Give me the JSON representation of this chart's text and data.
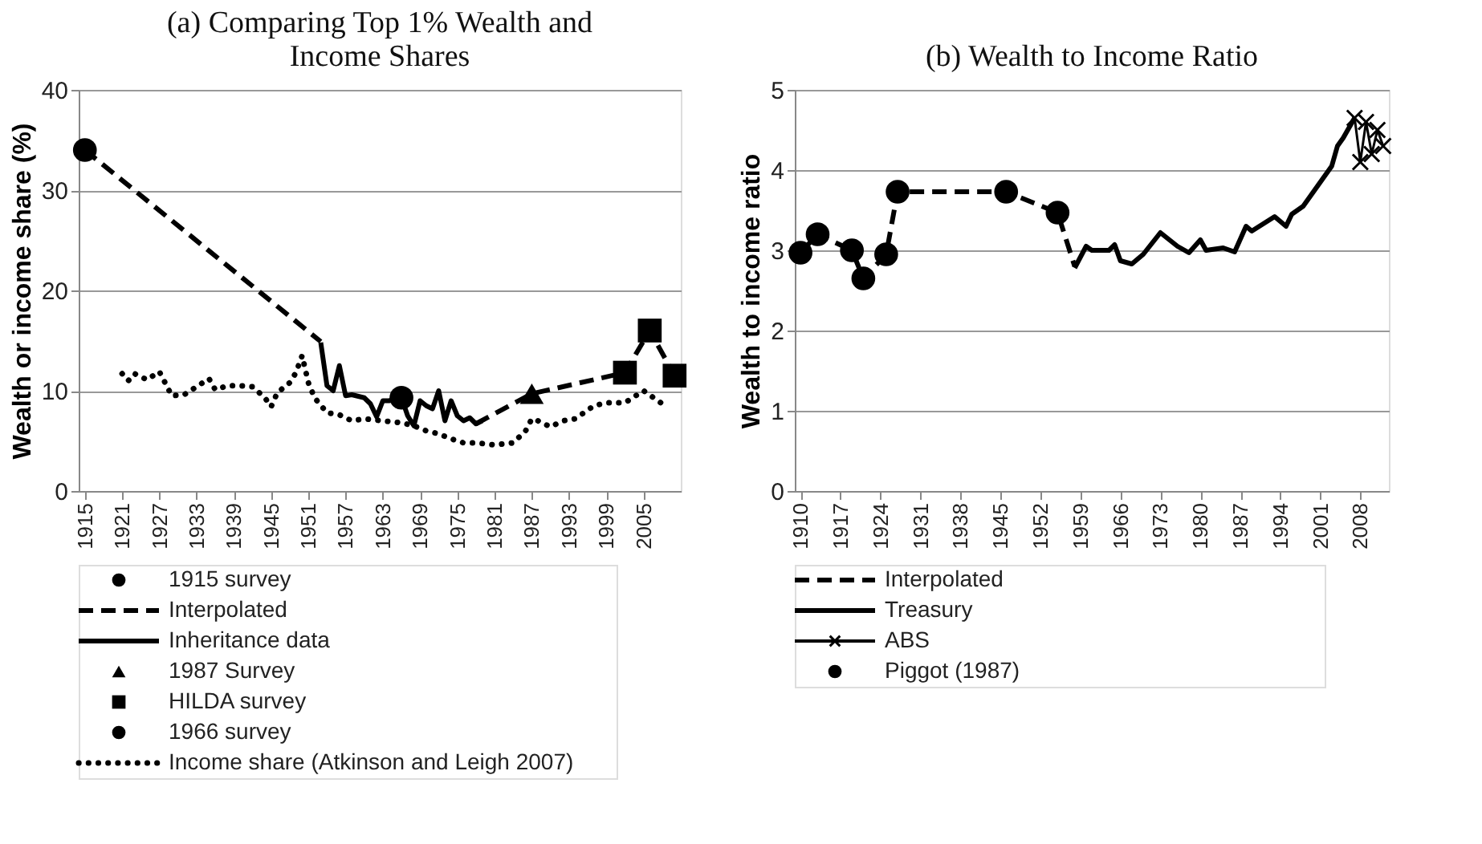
{
  "chart_data": [
    {
      "type": "line",
      "title": "(a) Comparing Top 1% Wealth and Income Shares",
      "ylabel": "Wealth or income share (%)",
      "xlim": [
        1914,
        2011
      ],
      "xticks": [
        1915,
        1921,
        1927,
        1933,
        1939,
        1945,
        1951,
        1957,
        1963,
        1969,
        1975,
        1981,
        1987,
        1993,
        1999,
        2005
      ],
      "ylim": [
        0,
        40
      ],
      "yticks": [
        0,
        10,
        20,
        30,
        40
      ],
      "grid": "y",
      "legend": "bottom",
      "series": [
        {
          "name": "1915 survey",
          "type": "scatter",
          "marker": "circle",
          "color": "#000000",
          "x": [
            1915
          ],
          "values": [
            34
          ]
        },
        {
          "name": "Interpolated",
          "type": "line",
          "line_style": "dashed",
          "color": "#000000",
          "x": [
            1915,
            1953,
            1965,
            1978,
            1987,
            2002,
            2006,
            2010
          ],
          "values": [
            34,
            14.9,
            null,
            6.7,
            9.7,
            11.8,
            16,
            11.5
          ]
        },
        {
          "name": "Inheritance data",
          "type": "line",
          "line_style": "solid",
          "color": "#000000",
          "x": [
            1953,
            1954,
            1955,
            1956,
            1957,
            1958,
            1960,
            1961,
            1962,
            1963,
            1964,
            1966,
            1967,
            1968,
            1969,
            1970,
            1971,
            1972,
            1973,
            1974,
            1975,
            1976,
            1977,
            1978,
            1979
          ],
          "values": [
            14.8,
            10.5,
            10,
            12.5,
            9.5,
            9.6,
            9.3,
            8.7,
            7.4,
            9,
            9,
            9.3,
            7.5,
            6.5,
            9,
            8.5,
            8.2,
            10,
            7,
            9,
            7.5,
            7,
            7.3,
            6.7,
            7
          ]
        },
        {
          "name": "1987 Survey",
          "type": "scatter",
          "marker": "triangle",
          "color": "#000000",
          "x": [
            1987
          ],
          "values": [
            9.7
          ]
        },
        {
          "name": "HILDA survey",
          "type": "scatter",
          "marker": "square",
          "color": "#000000",
          "x": [
            2002,
            2006,
            2010
          ],
          "values": [
            11.8,
            16,
            11.5
          ]
        },
        {
          "name": "1966 survey",
          "type": "scatter",
          "marker": "circle",
          "color": "#000000",
          "x": [
            1966
          ],
          "values": [
            9.3
          ]
        },
        {
          "name": "Income share (Atkinson and Leigh 2007)",
          "type": "line",
          "line_style": "dotted",
          "color": "#000000",
          "x": [
            1921,
            1922,
            1923,
            1925,
            1927,
            1928,
            1929,
            1931,
            1933,
            1935,
            1936,
            1938,
            1940,
            1942,
            1944,
            1945,
            1946,
            1948,
            1949,
            1950,
            1951,
            1952,
            1954,
            1956,
            1958,
            1960,
            1963,
            1966,
            1968,
            1970,
            1972,
            1974,
            1976,
            1978,
            1981,
            1984,
            1986,
            1987,
            1988,
            1990,
            1992,
            1994,
            1997,
            1999,
            2002,
            2005,
            2008
          ],
          "values": [
            11.7,
            11,
            11.7,
            11.1,
            11.9,
            10.7,
            9.5,
            9.6,
            10.4,
            11.2,
            10.1,
            10.5,
            10.5,
            10.4,
            9.3,
            8.4,
            9.8,
            10.8,
            11.8,
            13.5,
            10.8,
            9.3,
            7.8,
            7.6,
            7,
            7.2,
            7,
            6.8,
            6.5,
            6,
            5.7,
            5.2,
            4.8,
            4.8,
            4.6,
            4.8,
            6,
            7.2,
            7,
            6.4,
            7,
            7.2,
            8.5,
            8.8,
            8.8,
            10,
            8.7
          ]
        }
      ]
    },
    {
      "type": "line",
      "title": "(b) Wealth to Income Ratio",
      "ylabel": "Wealth to income ratio",
      "xlim": [
        1909,
        2013
      ],
      "xticks": [
        1910,
        1917,
        1924,
        1931,
        1938,
        1945,
        1952,
        1959,
        1966,
        1973,
        1980,
        1987,
        1994,
        2001,
        2008
      ],
      "ylim": [
        0,
        5
      ],
      "yticks": [
        0,
        1,
        2,
        3,
        4,
        5
      ],
      "grid": "y",
      "legend": "bottom",
      "series": [
        {
          "name": "Interpolated",
          "type": "line",
          "line_style": "dashed",
          "color": "#000000",
          "x": [
            1910,
            1913,
            1919,
            1921,
            1925,
            1927,
            1946,
            1955,
            1958
          ],
          "values": [
            2.97,
            3.2,
            3.0,
            2.65,
            2.95,
            3.73,
            3.73,
            3.47,
            2.8
          ]
        },
        {
          "name": "Treasury",
          "type": "line",
          "line_style": "solid",
          "color": "#000000",
          "x": [
            1958,
            1960,
            1961,
            1964,
            1965,
            1966,
            1968,
            1970,
            1973,
            1976,
            1978,
            1980,
            1981,
            1984,
            1986,
            1988,
            1989,
            1991,
            1993,
            1995,
            1996,
            1998,
            2000,
            2001,
            2003,
            2004,
            2005,
            2007
          ],
          "values": [
            2.78,
            3.05,
            3.0,
            3.0,
            3.07,
            2.87,
            2.83,
            2.95,
            3.22,
            3.05,
            2.97,
            3.13,
            3.0,
            3.03,
            2.98,
            3.3,
            3.24,
            3.33,
            3.42,
            3.3,
            3.45,
            3.55,
            3.75,
            3.85,
            4.05,
            4.3,
            4.4,
            4.65
          ]
        },
        {
          "name": "ABS",
          "type": "line",
          "line_style": "solid",
          "marker": "cross",
          "color": "#000000",
          "x": [
            2007,
            2008,
            2009,
            2010,
            2011,
            2012
          ],
          "values": [
            4.65,
            4.1,
            4.6,
            4.2,
            4.5,
            4.3
          ]
        },
        {
          "name": "Piggot (1987)",
          "type": "scatter",
          "marker": "circle",
          "color": "#000000",
          "x": [
            1910,
            1913,
            1919,
            1921,
            1925,
            1927,
            1946,
            1955
          ],
          "values": [
            2.97,
            3.2,
            3.0,
            2.65,
            2.95,
            3.73,
            3.73,
            3.47
          ]
        }
      ]
    }
  ]
}
